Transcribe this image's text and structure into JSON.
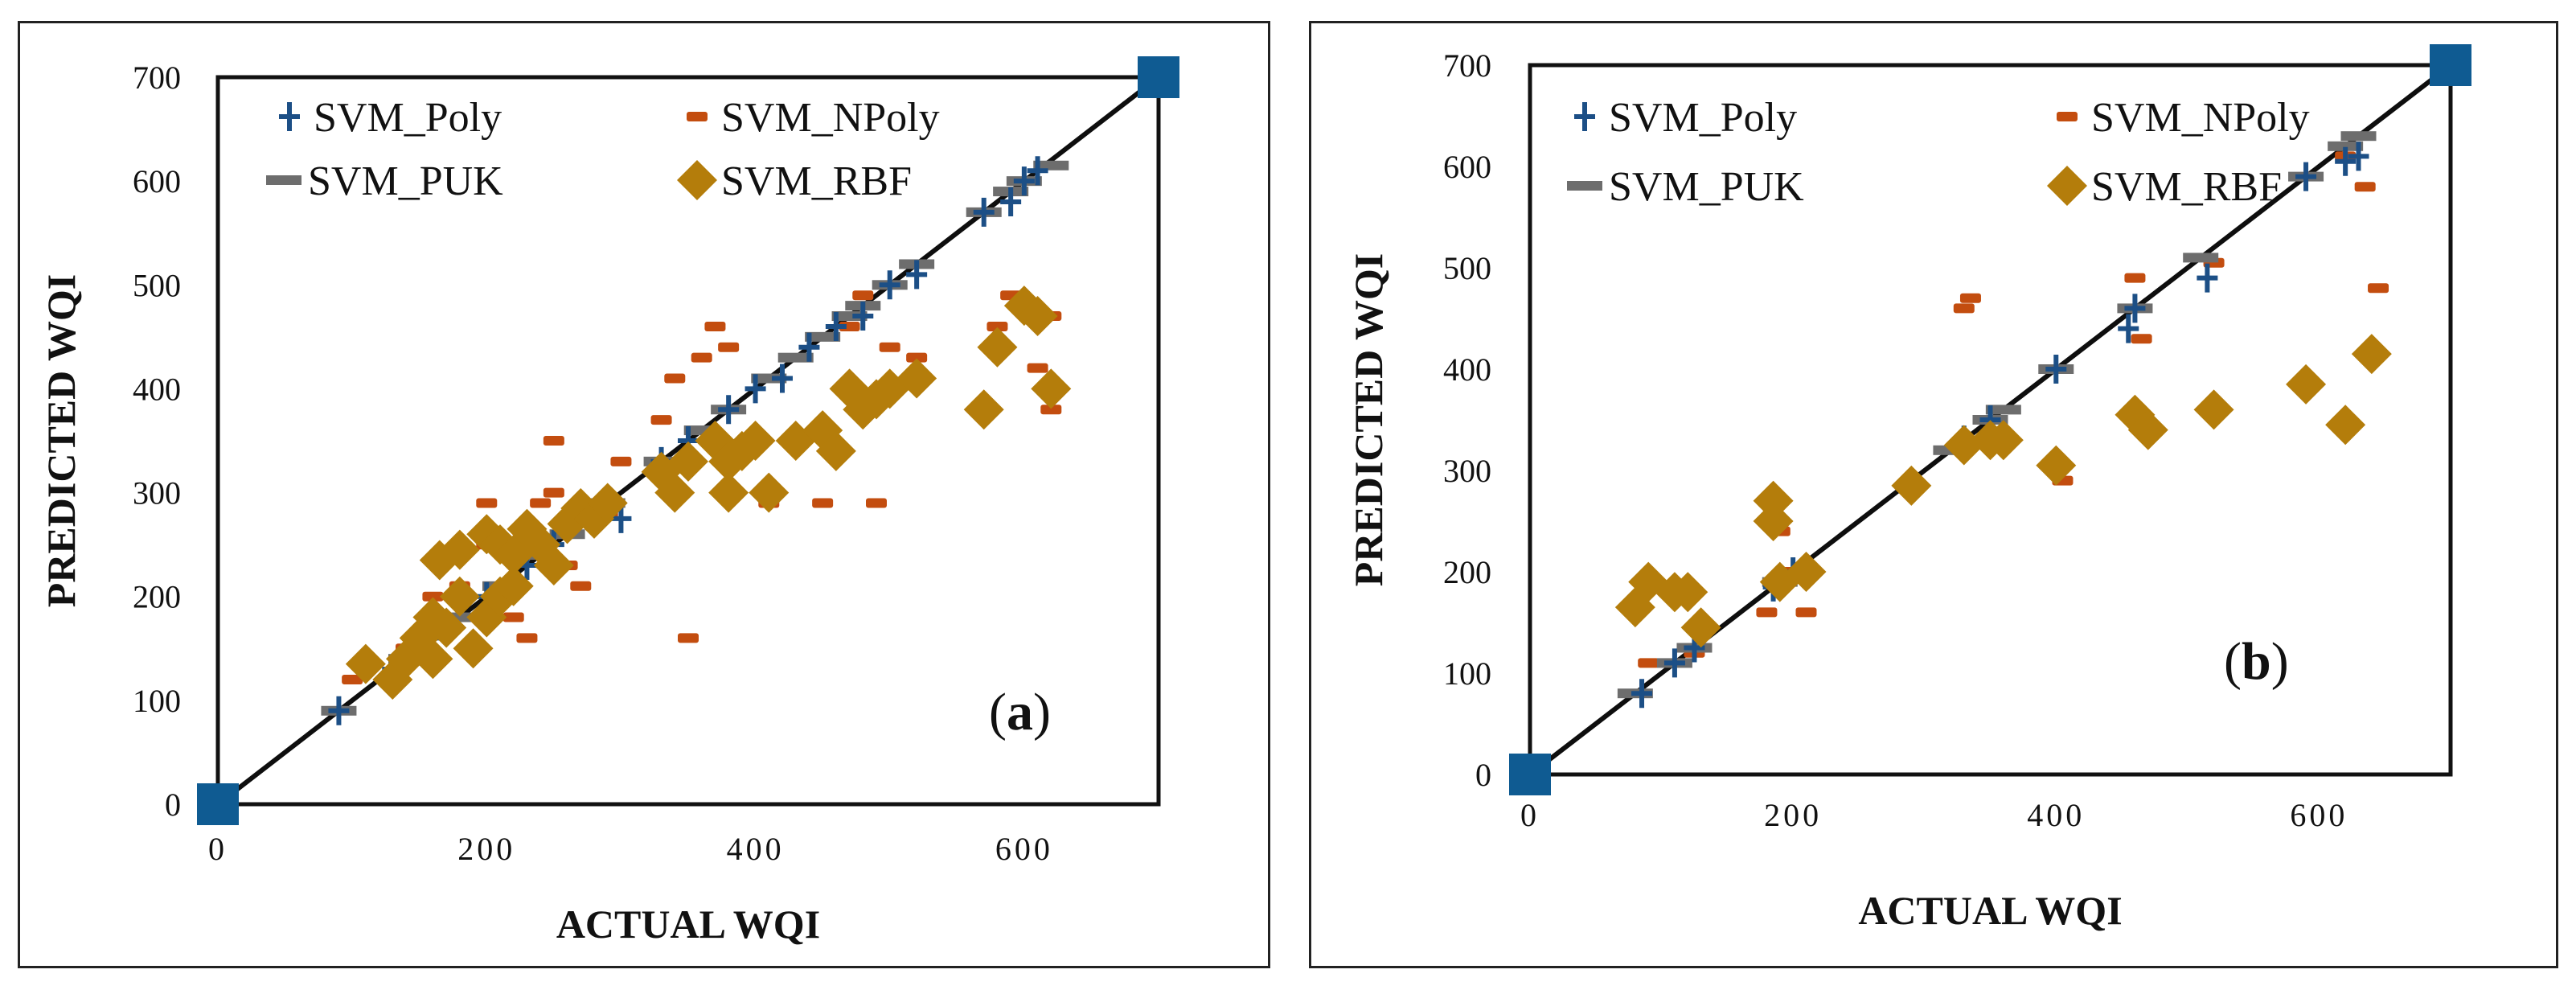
{
  "chart_data": [
    {
      "type": "scatter",
      "panel_label": "a",
      "xlabel": "ACTUAL WQI",
      "ylabel": "PREDICTED WQI",
      "xlim": [
        0,
        700
      ],
      "ylim": [
        0,
        700
      ],
      "xticks": [
        0,
        200,
        400,
        600
      ],
      "yticks": [
        0,
        100,
        200,
        300,
        400,
        500,
        600,
        700
      ],
      "grid": false,
      "legend_position": "top-left",
      "ideal_line": {
        "points": [
          [
            0,
            0
          ],
          [
            700,
            700
          ]
        ],
        "color": "#0e0e0e"
      },
      "series": [
        {
          "name": "SVM_Poly",
          "marker": "plus",
          "color": "#1c4f86",
          "points": [
            [
              90,
              90
            ],
            [
              130,
              130
            ],
            [
              160,
              160
            ],
            [
              200,
              200
            ],
            [
              230,
              230
            ],
            [
              250,
              250
            ],
            [
              280,
              280
            ],
            [
              300,
              275
            ],
            [
              330,
              330
            ],
            [
              350,
              350
            ],
            [
              380,
              380
            ],
            [
              400,
              400
            ],
            [
              420,
              410
            ],
            [
              440,
              440
            ],
            [
              460,
              460
            ],
            [
              480,
              470
            ],
            [
              500,
              500
            ],
            [
              520,
              510
            ],
            [
              570,
              570
            ],
            [
              590,
              580
            ],
            [
              600,
              600
            ],
            [
              610,
              610
            ]
          ]
        },
        {
          "name": "SVM_NPoly",
          "marker": "dash",
          "color": "#c34d0f",
          "points": [
            [
              100,
              120
            ],
            [
              140,
              150
            ],
            [
              160,
              200
            ],
            [
              180,
              210
            ],
            [
              200,
              290
            ],
            [
              200,
              250
            ],
            [
              220,
              180
            ],
            [
              230,
              160
            ],
            [
              240,
              290
            ],
            [
              250,
              350
            ],
            [
              250,
              300
            ],
            [
              260,
              230
            ],
            [
              270,
              210
            ],
            [
              290,
              280
            ],
            [
              300,
              330
            ],
            [
              330,
              370
            ],
            [
              340,
              410
            ],
            [
              350,
              160
            ],
            [
              360,
              430
            ],
            [
              370,
              460
            ],
            [
              380,
              440
            ],
            [
              400,
              350
            ],
            [
              410,
              290
            ],
            [
              450,
              290
            ],
            [
              470,
              460
            ],
            [
              480,
              490
            ],
            [
              490,
              290
            ],
            [
              500,
              440
            ],
            [
              520,
              430
            ],
            [
              580,
              460
            ],
            [
              590,
              490
            ],
            [
              610,
              420
            ],
            [
              620,
              380
            ],
            [
              620,
              470
            ]
          ]
        },
        {
          "name": "SVM_PUK",
          "marker": "bar",
          "color": "#6d6d6d",
          "points": [
            [
              90,
              90
            ],
            [
              140,
              140
            ],
            [
              180,
              180
            ],
            [
              210,
              210
            ],
            [
              240,
              240
            ],
            [
              260,
              260
            ],
            [
              290,
              290
            ],
            [
              330,
              330
            ],
            [
              360,
              360
            ],
            [
              380,
              380
            ],
            [
              410,
              410
            ],
            [
              430,
              430
            ],
            [
              450,
              450
            ],
            [
              470,
              470
            ],
            [
              480,
              480
            ],
            [
              500,
              500
            ],
            [
              520,
              520
            ],
            [
              570,
              570
            ],
            [
              590,
              590
            ],
            [
              600,
              600
            ],
            [
              620,
              615
            ]
          ]
        },
        {
          "name": "SVM_RBF",
          "marker": "diamond",
          "color": "#b47d0b",
          "points": [
            [
              110,
              135
            ],
            [
              130,
              120
            ],
            [
              140,
              140
            ],
            [
              150,
              160
            ],
            [
              160,
              180
            ],
            [
              160,
              140
            ],
            [
              165,
              235
            ],
            [
              170,
              170
            ],
            [
              180,
              200
            ],
            [
              180,
              245
            ],
            [
              190,
              150
            ],
            [
              200,
              180
            ],
            [
              200,
              260
            ],
            [
              210,
              200
            ],
            [
              210,
              250
            ],
            [
              220,
              240
            ],
            [
              220,
              210
            ],
            [
              230,
              265
            ],
            [
              240,
              250
            ],
            [
              250,
              230
            ],
            [
              260,
              270
            ],
            [
              270,
              285
            ],
            [
              280,
              275
            ],
            [
              290,
              290
            ],
            [
              330,
              320
            ],
            [
              340,
              300
            ],
            [
              350,
              330
            ],
            [
              370,
              350
            ],
            [
              380,
              300
            ],
            [
              380,
              330
            ],
            [
              390,
              340
            ],
            [
              400,
              350
            ],
            [
              410,
              300
            ],
            [
              430,
              350
            ],
            [
              450,
              360
            ],
            [
              460,
              340
            ],
            [
              470,
              400
            ],
            [
              480,
              380
            ],
            [
              490,
              390
            ],
            [
              500,
              400
            ],
            [
              520,
              410
            ],
            [
              570,
              380
            ],
            [
              580,
              440
            ],
            [
              600,
              480
            ],
            [
              610,
              470
            ],
            [
              620,
              400
            ]
          ]
        }
      ],
      "corner_markers": {
        "name": "",
        "marker": "square",
        "color": "#0f5b92",
        "points": [
          [
            0,
            0
          ],
          [
            700,
            700
          ]
        ]
      }
    },
    {
      "type": "scatter",
      "panel_label": "b",
      "xlabel": "ACTUAL WQI",
      "ylabel": "PREDICTED WQI",
      "xlim": [
        0,
        700
      ],
      "ylim": [
        0,
        700
      ],
      "xticks": [
        0,
        200,
        400,
        600
      ],
      "yticks": [
        0,
        100,
        200,
        300,
        400,
        500,
        600,
        700
      ],
      "grid": false,
      "legend_position": "top-left",
      "ideal_line": {
        "points": [
          [
            0,
            0
          ],
          [
            700,
            700
          ]
        ],
        "color": "#0e0e0e"
      },
      "series": [
        {
          "name": "SVM_Poly",
          "marker": "plus",
          "color": "#1c4f86",
          "points": [
            [
              85,
              80
            ],
            [
              110,
              110
            ],
            [
              125,
              125
            ],
            [
              185,
              185
            ],
            [
              200,
              200
            ],
            [
              330,
              330
            ],
            [
              350,
              350
            ],
            [
              400,
              400
            ],
            [
              455,
              440
            ],
            [
              460,
              460
            ],
            [
              515,
              490
            ],
            [
              590,
              590
            ],
            [
              620,
              605
            ],
            [
              630,
              610
            ]
          ]
        },
        {
          "name": "SVM_NPoly",
          "marker": "dash",
          "color": "#c34d0f",
          "points": [
            [
              90,
              110
            ],
            [
              125,
              120
            ],
            [
              180,
              160
            ],
            [
              190,
              240
            ],
            [
              200,
              200
            ],
            [
              210,
              160
            ],
            [
              330,
              460
            ],
            [
              335,
              470
            ],
            [
              405,
              290
            ],
            [
              460,
              490
            ],
            [
              465,
              430
            ],
            [
              520,
              505
            ],
            [
              620,
              610
            ],
            [
              635,
              580
            ],
            [
              645,
              480
            ]
          ]
        },
        {
          "name": "SVM_PUK",
          "marker": "bar",
          "color": "#6d6d6d",
          "points": [
            [
              80,
              80
            ],
            [
              110,
              110
            ],
            [
              125,
              125
            ],
            [
              190,
              190
            ],
            [
              320,
              320
            ],
            [
              350,
              350
            ],
            [
              360,
              360
            ],
            [
              400,
              400
            ],
            [
              460,
              460
            ],
            [
              510,
              510
            ],
            [
              590,
              590
            ],
            [
              620,
              620
            ],
            [
              630,
              630
            ]
          ]
        },
        {
          "name": "SVM_RBF",
          "marker": "diamond",
          "color": "#b47d0b",
          "points": [
            [
              80,
              165
            ],
            [
              90,
              190
            ],
            [
              110,
              180
            ],
            [
              120,
              180
            ],
            [
              130,
              145
            ],
            [
              185,
              270
            ],
            [
              185,
              250
            ],
            [
              190,
              190
            ],
            [
              210,
              200
            ],
            [
              290,
              285
            ],
            [
              330,
              325
            ],
            [
              350,
              330
            ],
            [
              360,
              330
            ],
            [
              400,
              305
            ],
            [
              460,
              355
            ],
            [
              470,
              340
            ],
            [
              520,
              360
            ],
            [
              590,
              385
            ],
            [
              620,
              345
            ],
            [
              640,
              415
            ]
          ]
        }
      ],
      "corner_markers": {
        "name": "",
        "marker": "square",
        "color": "#0f5b92",
        "points": [
          [
            0,
            0
          ],
          [
            700,
            700
          ]
        ]
      }
    }
  ]
}
